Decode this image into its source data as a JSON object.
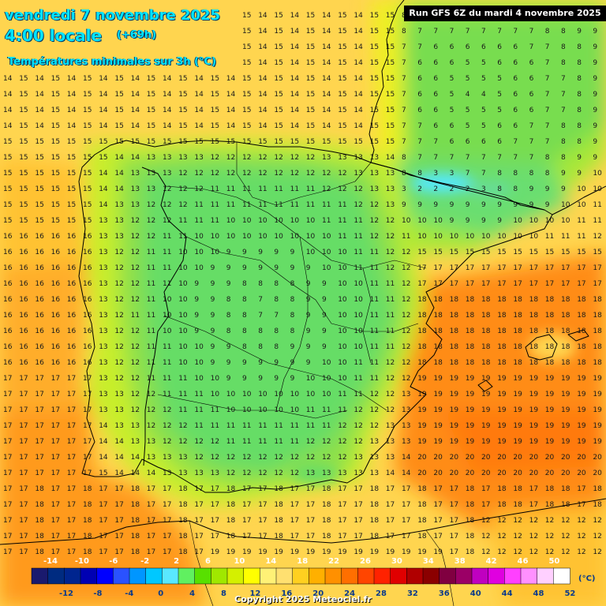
{
  "header": {
    "date": "vendredi 7 novembre 2025",
    "time": "4:00 locale",
    "offset": "(+69h)",
    "subtitle": "Températures minimales sur 3h (°C)",
    "run": "Run GFS 6Z du mardi 4 novembre 2025"
  },
  "legend": {
    "top_labels": [
      "-14",
      "-10",
      "-6",
      "-2",
      "2",
      "6",
      "10",
      "14",
      "18",
      "22",
      "26",
      "30",
      "34",
      "38",
      "42",
      "46",
      "50"
    ],
    "bottom_labels": [
      "-12",
      "-8",
      "-4",
      "0",
      "4",
      "8",
      "12",
      "16",
      "20",
      "24",
      "28",
      "32",
      "36",
      "40",
      "44",
      "48",
      "52"
    ],
    "unit": "(°C)",
    "colors": [
      "#1a1a6e",
      "#002b80",
      "#00258f",
      "#0000b3",
      "#0000ff",
      "#2a52ff",
      "#0096ff",
      "#00c8ff",
      "#5ae8ff",
      "#60f060",
      "#58e000",
      "#a0e800",
      "#d4f000",
      "#ffff00",
      "#fff176",
      "#ffe070",
      "#ffd020",
      "#ffb000",
      "#ff9000",
      "#ff6f00",
      "#ff4500",
      "#ff2200",
      "#e00000",
      "#b00000",
      "#8b0000",
      "#800040",
      "#9b0066",
      "#c000c0",
      "#e000e0",
      "#ff40ff",
      "#ff90ff",
      "#ffd0ff",
      "#ffffff"
    ]
  },
  "map": {
    "region": "Péninsule ibérique",
    "variable": "Températures minimales sur 3h",
    "unit": "°C",
    "value_range": [
      0,
      21
    ],
    "cold_spot_value": 0
  },
  "copyright": "Copyright 2025 Meteociel.fr"
}
